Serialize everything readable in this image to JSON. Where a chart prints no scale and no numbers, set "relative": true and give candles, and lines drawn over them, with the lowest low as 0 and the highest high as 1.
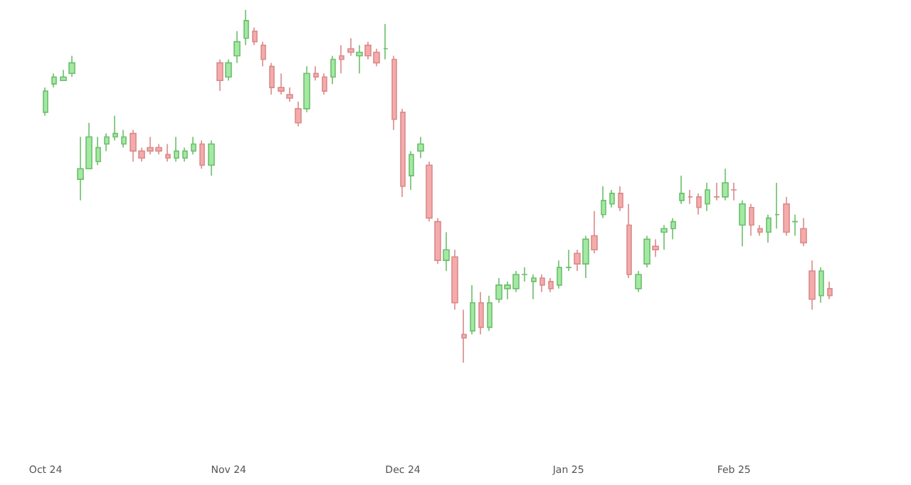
{
  "chart_data": {
    "type": "candlestick",
    "relative": true,
    "categories": [
      "Oct 24",
      null,
      null,
      null,
      null,
      null,
      null,
      null,
      null,
      null,
      null,
      null,
      null,
      null,
      null,
      null,
      null,
      null,
      null,
      null,
      null,
      "Nov 24",
      null,
      null,
      null,
      null,
      null,
      null,
      null,
      null,
      null,
      null,
      null,
      null,
      null,
      null,
      null,
      null,
      null,
      null,
      null,
      "Dec 24",
      null,
      null,
      null,
      null,
      null,
      null,
      null,
      null,
      null,
      null,
      null,
      null,
      null,
      null,
      null,
      null,
      null,
      null,
      "Jan 25",
      null,
      null,
      null,
      null,
      null,
      null,
      null,
      null,
      null,
      null,
      null,
      null,
      null,
      null,
      null,
      null,
      null,
      null,
      "Feb 25",
      null,
      null,
      null,
      null,
      null,
      null,
      null,
      null,
      null,
      null,
      null
    ],
    "ohlc": [
      [
        0.71,
        0.78,
        0.7,
        0.77
      ],
      [
        0.79,
        0.82,
        0.78,
        0.81
      ],
      [
        0.8,
        0.83,
        0.8,
        0.81
      ],
      [
        0.82,
        0.87,
        0.81,
        0.85
      ],
      [
        0.52,
        0.64,
        0.46,
        0.55
      ],
      [
        0.55,
        0.68,
        0.55,
        0.64
      ],
      [
        0.57,
        0.64,
        0.56,
        0.61
      ],
      [
        0.62,
        0.65,
        0.6,
        0.64
      ],
      [
        0.64,
        0.7,
        0.63,
        0.65
      ],
      [
        0.62,
        0.66,
        0.61,
        0.64
      ],
      [
        0.65,
        0.66,
        0.57,
        0.6
      ],
      [
        0.6,
        0.61,
        0.57,
        0.58
      ],
      [
        0.61,
        0.64,
        0.59,
        0.6
      ],
      [
        0.61,
        0.62,
        0.59,
        0.6
      ],
      [
        0.59,
        0.62,
        0.57,
        0.58
      ],
      [
        0.58,
        0.64,
        0.57,
        0.6
      ],
      [
        0.58,
        0.61,
        0.57,
        0.6
      ],
      [
        0.6,
        0.64,
        0.59,
        0.62
      ],
      [
        0.62,
        0.63,
        0.55,
        0.56
      ],
      [
        0.56,
        0.63,
        0.53,
        0.62
      ],
      [
        0.85,
        0.86,
        0.77,
        0.8
      ],
      [
        0.81,
        0.86,
        0.8,
        0.85
      ],
      [
        0.87,
        0.94,
        0.85,
        0.91
      ],
      [
        0.92,
        1.0,
        0.9,
        0.97
      ],
      [
        0.94,
        0.95,
        0.9,
        0.91
      ],
      [
        0.9,
        0.91,
        0.84,
        0.86
      ],
      [
        0.84,
        0.85,
        0.76,
        0.78
      ],
      [
        0.78,
        0.82,
        0.76,
        0.77
      ],
      [
        0.76,
        0.78,
        0.74,
        0.75
      ],
      [
        0.72,
        0.74,
        0.67,
        0.68
      ],
      [
        0.72,
        0.84,
        0.71,
        0.82
      ],
      [
        0.82,
        0.84,
        0.8,
        0.81
      ],
      [
        0.81,
        0.82,
        0.76,
        0.77
      ],
      [
        0.81,
        0.87,
        0.79,
        0.86
      ],
      [
        0.87,
        0.9,
        0.82,
        0.86
      ],
      [
        0.89,
        0.92,
        0.87,
        0.88
      ],
      [
        0.87,
        0.9,
        0.82,
        0.88
      ],
      [
        0.9,
        0.91,
        0.86,
        0.87
      ],
      [
        0.88,
        0.89,
        0.84,
        0.85
      ],
      [
        0.89,
        0.96,
        0.86,
        0.89
      ],
      [
        0.86,
        0.87,
        0.66,
        0.69
      ],
      [
        0.71,
        0.72,
        0.47,
        0.5
      ],
      [
        0.53,
        0.6,
        0.49,
        0.59
      ],
      [
        0.6,
        0.64,
        0.58,
        0.62
      ],
      [
        0.56,
        0.57,
        0.4,
        0.41
      ],
      [
        0.4,
        0.41,
        0.28,
        0.29
      ],
      [
        0.29,
        0.37,
        0.26,
        0.32
      ],
      [
        0.3,
        0.32,
        0.15,
        0.17
      ],
      [
        0.08,
        0.15,
        0.0,
        0.07
      ],
      [
        0.09,
        0.22,
        0.08,
        0.17
      ],
      [
        0.17,
        0.2,
        0.08,
        0.1
      ],
      [
        0.1,
        0.19,
        0.09,
        0.17
      ],
      [
        0.18,
        0.24,
        0.17,
        0.22
      ],
      [
        0.21,
        0.23,
        0.18,
        0.22
      ],
      [
        0.21,
        0.26,
        0.2,
        0.25
      ],
      [
        0.25,
        0.27,
        0.23,
        0.25
      ],
      [
        0.23,
        0.25,
        0.18,
        0.24
      ],
      [
        0.24,
        0.25,
        0.2,
        0.22
      ],
      [
        0.23,
        0.24,
        0.2,
        0.21
      ],
      [
        0.22,
        0.29,
        0.21,
        0.27
      ],
      [
        0.27,
        0.32,
        0.26,
        0.27
      ],
      [
        0.31,
        0.32,
        0.26,
        0.28
      ],
      [
        0.28,
        0.36,
        0.24,
        0.35
      ],
      [
        0.36,
        0.43,
        0.31,
        0.32
      ],
      [
        0.42,
        0.5,
        0.41,
        0.46
      ],
      [
        0.45,
        0.49,
        0.44,
        0.48
      ],
      [
        0.48,
        0.5,
        0.43,
        0.44
      ],
      [
        0.39,
        0.45,
        0.24,
        0.25
      ],
      [
        0.21,
        0.26,
        0.2,
        0.25
      ],
      [
        0.28,
        0.36,
        0.27,
        0.35
      ],
      [
        0.33,
        0.35,
        0.3,
        0.32
      ],
      [
        0.37,
        0.39,
        0.32,
        0.38
      ],
      [
        0.38,
        0.41,
        0.35,
        0.4
      ],
      [
        0.46,
        0.53,
        0.45,
        0.48
      ],
      [
        0.47,
        0.49,
        0.45,
        0.47
      ],
      [
        0.47,
        0.48,
        0.42,
        0.44
      ],
      [
        0.45,
        0.51,
        0.43,
        0.49
      ],
      [
        0.47,
        0.51,
        0.46,
        0.47
      ],
      [
        0.47,
        0.55,
        0.46,
        0.51
      ],
      [
        0.49,
        0.51,
        0.46,
        0.49
      ],
      [
        0.39,
        0.46,
        0.33,
        0.45
      ],
      [
        0.44,
        0.45,
        0.36,
        0.39
      ],
      [
        0.38,
        0.39,
        0.36,
        0.37
      ],
      [
        0.37,
        0.42,
        0.34,
        0.41
      ],
      [
        0.42,
        0.51,
        0.38,
        0.42
      ],
      [
        0.45,
        0.47,
        0.36,
        0.37
      ],
      [
        0.4,
        0.42,
        0.36,
        0.4
      ],
      [
        0.38,
        0.41,
        0.33,
        0.34
      ],
      [
        0.26,
        0.29,
        0.15,
        0.18
      ],
      [
        0.19,
        0.27,
        0.17,
        0.26
      ],
      [
        0.21,
        0.23,
        0.18,
        0.19
      ]
    ]
  }
}
